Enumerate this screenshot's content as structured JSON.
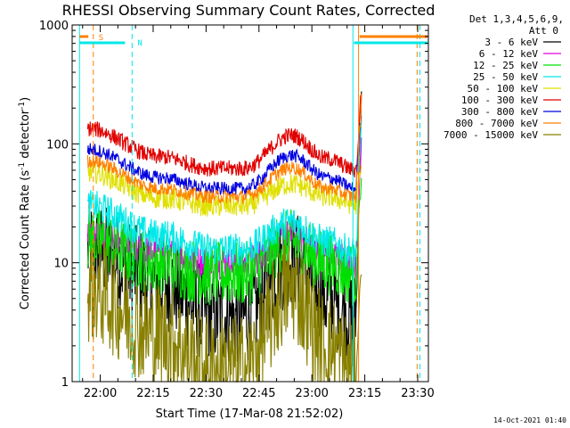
{
  "chart_data": {
    "type": "line",
    "title": "RHESSI Observing Summary Count Rates, Corrected",
    "xlabel": "Start Time (17-Mar-08 21:52:02)",
    "ylabel_main": "Corrected Count Rate (s",
    "ylabel_sup1": "-1",
    "ylabel_mid": " detector",
    "ylabel_sup2": "-1",
    "ylabel_end": ")",
    "y_scale": "log",
    "ylim": [
      1,
      1000
    ],
    "xlim": [
      "21:52:02",
      "23:33:00"
    ],
    "x_ticks": [
      "22:00",
      "22:15",
      "22:30",
      "22:45",
      "23:00",
      "23:15",
      "23:30"
    ],
    "y_ticks": [
      "1",
      "10",
      "100",
      "1000"
    ],
    "legend_header": [
      "Det 1,3,4,5,6,9,",
      "Att 0"
    ],
    "legend_position": "right",
    "series": [
      {
        "name": "3 - 6 keV",
        "color": "#000000",
        "keypoints": [
          [
            0,
            13
          ],
          [
            30,
            7
          ],
          [
            52,
            3.6
          ],
          [
            65,
            3.5
          ],
          [
            85,
            11
          ],
          [
            100,
            5
          ],
          [
            112,
            3.4
          ]
        ],
        "noise": 0.18
      },
      {
        "name": "6 - 12 keV",
        "color": "#e000e0",
        "keypoints": [
          [
            0,
            17
          ],
          [
            30,
            12
          ],
          [
            52,
            10
          ],
          [
            65,
            10
          ],
          [
            85,
            17
          ],
          [
            100,
            12
          ],
          [
            112,
            10
          ]
        ],
        "noise": 0.06
      },
      {
        "name": "12 - 25 keV",
        "color": "#00e000",
        "keypoints": [
          [
            0,
            16
          ],
          [
            30,
            10
          ],
          [
            52,
            8
          ],
          [
            65,
            8
          ],
          [
            85,
            15
          ],
          [
            100,
            10
          ],
          [
            112,
            8
          ]
        ],
        "noise": 0.12
      },
      {
        "name": "25 - 50 keV",
        "color": "#00e8e8",
        "keypoints": [
          [
            0,
            30
          ],
          [
            30,
            17
          ],
          [
            52,
            13
          ],
          [
            65,
            13
          ],
          [
            85,
            22
          ],
          [
            100,
            15
          ],
          [
            112,
            12
          ]
        ],
        "noise": 0.06
      },
      {
        "name": "50 - 100 keV",
        "color": "#e0e000",
        "keypoints": [
          [
            0,
            58
          ],
          [
            30,
            35
          ],
          [
            52,
            30
          ],
          [
            65,
            30
          ],
          [
            85,
            46
          ],
          [
            100,
            36
          ],
          [
            112,
            31
          ]
        ],
        "noise": 0.04
      },
      {
        "name": "100 - 300 keV",
        "color": "#e00000",
        "keypoints": [
          [
            0,
            135
          ],
          [
            30,
            78
          ],
          [
            52,
            62
          ],
          [
            65,
            62
          ],
          [
            85,
            118
          ],
          [
            100,
            75
          ],
          [
            112,
            60
          ]
        ],
        "noise": 0.03
      },
      {
        "name": "300 - 800 keV",
        "color": "#0000e0",
        "keypoints": [
          [
            0,
            90
          ],
          [
            30,
            52
          ],
          [
            52,
            42
          ],
          [
            65,
            42
          ],
          [
            85,
            80
          ],
          [
            100,
            52
          ],
          [
            112,
            42
          ]
        ],
        "noise": 0.025
      },
      {
        "name": "800 - 7000 keV",
        "color": "#ff8000",
        "keypoints": [
          [
            0,
            72
          ],
          [
            30,
            42
          ],
          [
            52,
            36
          ],
          [
            65,
            36
          ],
          [
            85,
            63
          ],
          [
            100,
            42
          ],
          [
            112,
            36
          ]
        ],
        "noise": 0.025
      },
      {
        "name": "7000 - 15000 keV",
        "color": "#888000",
        "keypoints": [
          [
            0,
            6
          ],
          [
            30,
            2.5
          ],
          [
            52,
            1.3
          ],
          [
            65,
            1.3
          ],
          [
            85,
            6
          ],
          [
            100,
            2.0
          ],
          [
            112,
            1.2
          ]
        ],
        "noise": 0.2
      }
    ],
    "markers": [
      {
        "label": "S",
        "color": "#ff8000",
        "x_min": 6,
        "style": "dashed"
      },
      {
        "label": "N",
        "color": "#00e8e8",
        "x_min": 17,
        "style": "dashed"
      }
    ],
    "timestamp": "14-Oct-2021 01:40"
  }
}
